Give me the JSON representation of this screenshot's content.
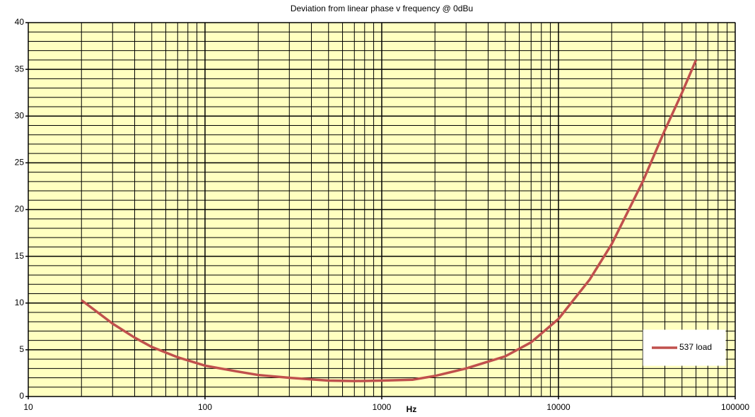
{
  "chart_data": {
    "type": "line",
    "title": "Deviation from linear phase v frequency @ 0dBu",
    "x_label": "Hz",
    "x": [
      20,
      30,
      40,
      50,
      70,
      100,
      150,
      200,
      300,
      500,
      700,
      1000,
      1500,
      2000,
      3000,
      5000,
      7000,
      10000,
      15000,
      20000,
      30000,
      40000,
      50000,
      60000
    ],
    "series": [
      {
        "name": "537 load",
        "color": "#c0504d",
        "values": [
          10.3,
          7.8,
          6.3,
          5.3,
          4.2,
          3.3,
          2.7,
          2.3,
          2.0,
          1.7,
          1.65,
          1.7,
          1.8,
          2.2,
          3.0,
          4.3,
          5.8,
          8.3,
          12.5,
          16.3,
          23,
          28.5,
          32.5,
          36
        ]
      }
    ],
    "xlim": [
      10,
      100000
    ],
    "xticks": [
      10,
      100,
      1000,
      10000,
      100000
    ],
    "xscale": "log",
    "ylim": [
      0,
      40
    ],
    "yticks": [
      0,
      5,
      10,
      15,
      20,
      25,
      30,
      35,
      40
    ],
    "grid": true,
    "legend": "lower right",
    "plot_background": "#ffffc0"
  }
}
